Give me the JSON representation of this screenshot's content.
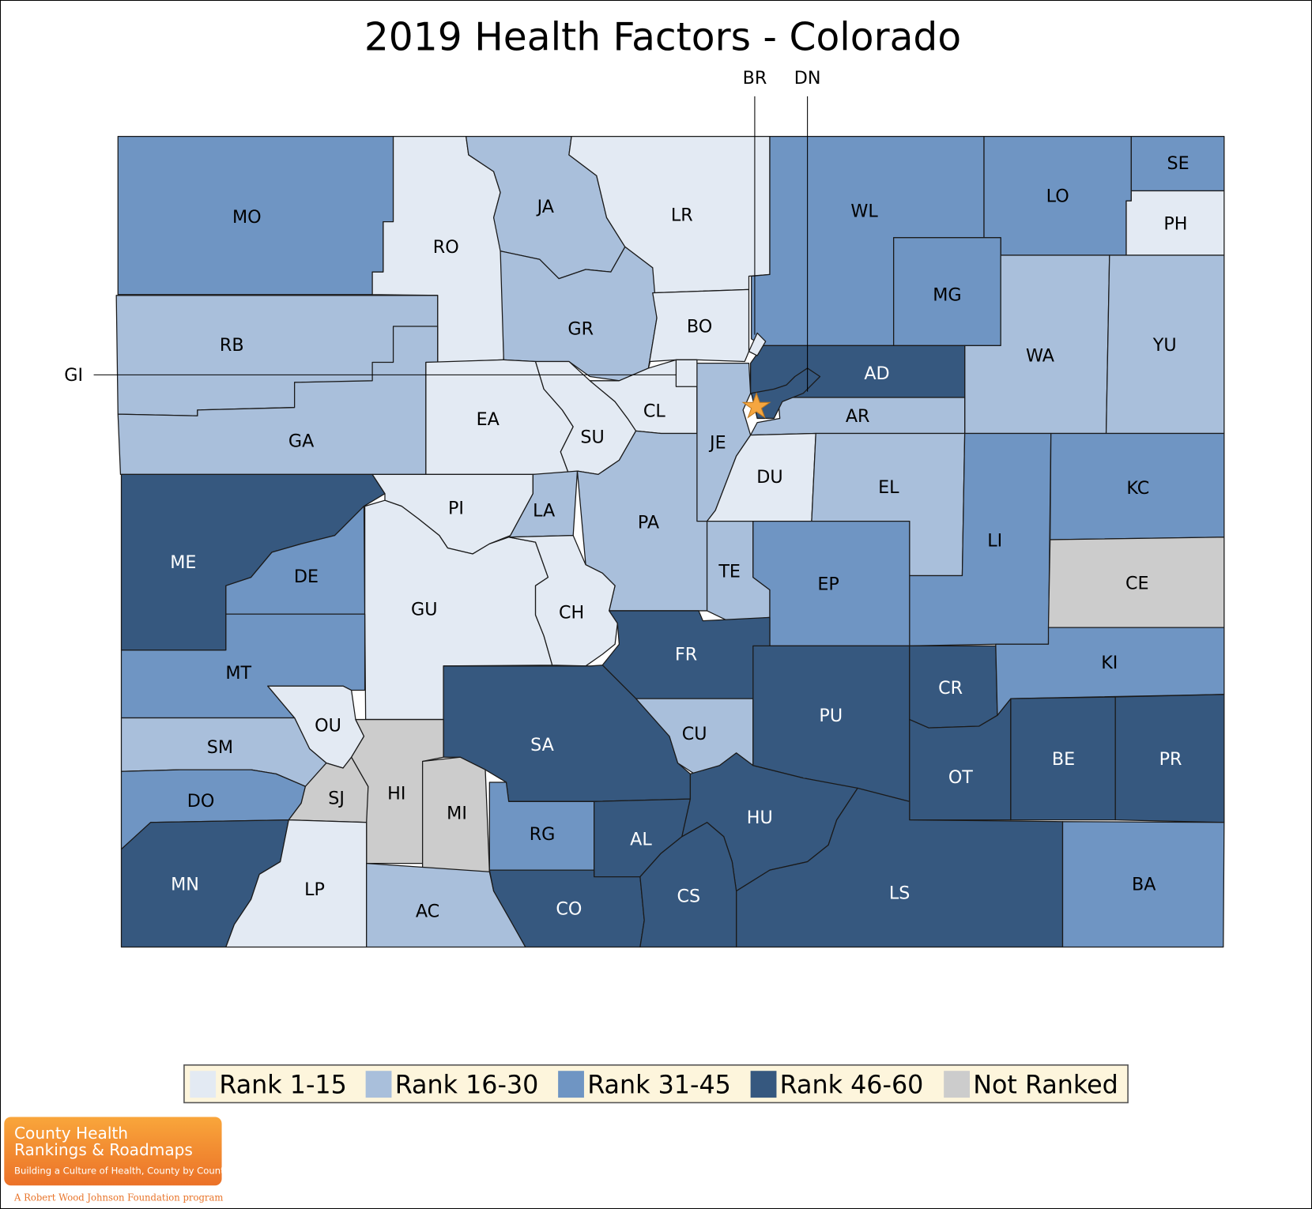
{
  "title": "2019 Health Factors - Colorado",
  "colors": {
    "rank_1_15": "#e3eaf3",
    "rank_16_30": "#a9bfdb",
    "rank_31_45": "#6f95c3",
    "rank_46_60": "#36587f",
    "not_ranked": "#cccccc",
    "capital_star": "#f5a640",
    "legend_bg": "#fdf5dc"
  },
  "legend": [
    {
      "key": "rank_1_15",
      "label": "Rank 1-15"
    },
    {
      "key": "rank_16_30",
      "label": "Rank 16-30"
    },
    {
      "key": "rank_31_45",
      "label": "Rank 31-45"
    },
    {
      "key": "rank_46_60",
      "label": "Rank 46-60"
    },
    {
      "key": "not_ranked",
      "label": "Not Ranked"
    }
  ],
  "counties": [
    {
      "code": "MO",
      "rank": "rank_31_45"
    },
    {
      "code": "RO",
      "rank": "rank_1_15"
    },
    {
      "code": "JA",
      "rank": "rank_16_30"
    },
    {
      "code": "LR",
      "rank": "rank_1_15"
    },
    {
      "code": "WL",
      "rank": "rank_31_45"
    },
    {
      "code": "LO",
      "rank": "rank_31_45"
    },
    {
      "code": "SE",
      "rank": "rank_31_45"
    },
    {
      "code": "PH",
      "rank": "rank_1_15"
    },
    {
      "code": "RB",
      "rank": "rank_16_30"
    },
    {
      "code": "GR",
      "rank": "rank_16_30"
    },
    {
      "code": "BO",
      "rank": "rank_1_15"
    },
    {
      "code": "MG",
      "rank": "rank_31_45"
    },
    {
      "code": "WA",
      "rank": "rank_16_30"
    },
    {
      "code": "YU",
      "rank": "rank_16_30"
    },
    {
      "code": "GA",
      "rank": "rank_16_30"
    },
    {
      "code": "EA",
      "rank": "rank_1_15"
    },
    {
      "code": "SU",
      "rank": "rank_1_15"
    },
    {
      "code": "CL",
      "rank": "rank_1_15"
    },
    {
      "code": "JE",
      "rank": "rank_16_30"
    },
    {
      "code": "AD",
      "rank": "rank_46_60"
    },
    {
      "code": "AR",
      "rank": "rank_16_30"
    },
    {
      "code": "DU",
      "rank": "rank_1_15"
    },
    {
      "code": "EL",
      "rank": "rank_16_30"
    },
    {
      "code": "LI",
      "rank": "rank_31_45"
    },
    {
      "code": "KC",
      "rank": "rank_31_45"
    },
    {
      "code": "CE",
      "rank": "not_ranked"
    },
    {
      "code": "ME",
      "rank": "rank_46_60"
    },
    {
      "code": "DE",
      "rank": "rank_31_45"
    },
    {
      "code": "PI",
      "rank": "rank_1_15"
    },
    {
      "code": "LA",
      "rank": "rank_16_30"
    },
    {
      "code": "PA",
      "rank": "rank_16_30"
    },
    {
      "code": "TE",
      "rank": "rank_16_30"
    },
    {
      "code": "EP",
      "rank": "rank_31_45"
    },
    {
      "code": "GU",
      "rank": "rank_1_15"
    },
    {
      "code": "CH",
      "rank": "rank_1_15"
    },
    {
      "code": "FR",
      "rank": "rank_46_60"
    },
    {
      "code": "MT",
      "rank": "rank_31_45"
    },
    {
      "code": "OU",
      "rank": "rank_1_15"
    },
    {
      "code": "SM",
      "rank": "rank_16_30"
    },
    {
      "code": "SA",
      "rank": "rank_46_60"
    },
    {
      "code": "CU",
      "rank": "rank_16_30"
    },
    {
      "code": "PU",
      "rank": "rank_46_60"
    },
    {
      "code": "CR",
      "rank": "rank_46_60"
    },
    {
      "code": "OT",
      "rank": "rank_46_60"
    },
    {
      "code": "KI",
      "rank": "rank_31_45"
    },
    {
      "code": "BE",
      "rank": "rank_46_60"
    },
    {
      "code": "PR",
      "rank": "rank_46_60"
    },
    {
      "code": "DO",
      "rank": "rank_31_45"
    },
    {
      "code": "SJ",
      "rank": "not_ranked"
    },
    {
      "code": "HI",
      "rank": "not_ranked"
    },
    {
      "code": "MI",
      "rank": "not_ranked"
    },
    {
      "code": "RG",
      "rank": "rank_31_45"
    },
    {
      "code": "AL",
      "rank": "rank_46_60"
    },
    {
      "code": "HU",
      "rank": "rank_46_60"
    },
    {
      "code": "LS",
      "rank": "rank_46_60"
    },
    {
      "code": "BA",
      "rank": "rank_31_45"
    },
    {
      "code": "MN",
      "rank": "rank_46_60"
    },
    {
      "code": "LP",
      "rank": "rank_1_15"
    },
    {
      "code": "AC",
      "rank": "rank_16_30"
    },
    {
      "code": "CO",
      "rank": "rank_46_60"
    },
    {
      "code": "CS",
      "rank": "rank_46_60"
    },
    {
      "code": "BR",
      "rank": "rank_1_15"
    },
    {
      "code": "DN",
      "rank": "rank_46_60"
    },
    {
      "code": "GI",
      "rank": "rank_1_15"
    }
  ],
  "callouts": [
    {
      "code": "GI"
    },
    {
      "code": "BR"
    },
    {
      "code": "DN"
    }
  ],
  "logo": {
    "line1": "County Health",
    "line2": "Rankings & Roadmaps",
    "tagline": "Building a Culture of Health, County by County",
    "footer": "A Robert Wood Johnson Foundation program"
  }
}
